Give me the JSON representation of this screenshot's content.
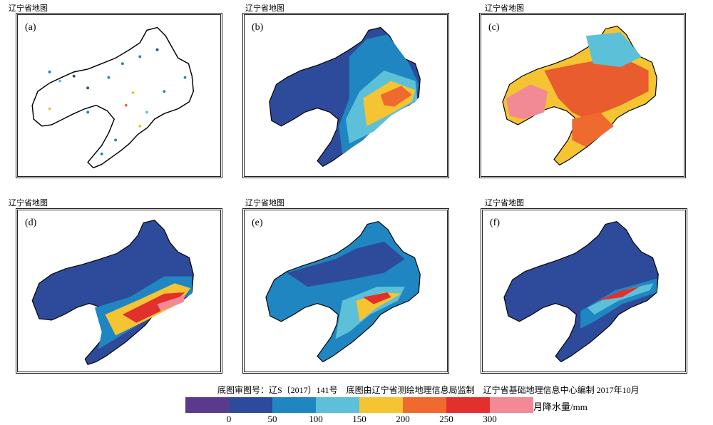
{
  "panels": [
    {
      "id": "a",
      "header": "辽宁省地图",
      "label": "(a)"
    },
    {
      "id": "b",
      "header": "辽宁省地图",
      "label": "(b)"
    },
    {
      "id": "c",
      "header": "辽宁省地图",
      "label": "(c)"
    },
    {
      "id": "d",
      "header": "辽宁省地图",
      "label": "(d)"
    },
    {
      "id": "e",
      "header": "辽宁省地图",
      "label": "(e)"
    },
    {
      "id": "f",
      "header": "辽宁省地图",
      "label": "(f)"
    }
  ],
  "credits": "底图审图号：辽S〔2017〕141号　底图由辽宁省测绘地理信息局监制　辽宁省基础地理信息中心编制 2017年10月",
  "legend": {
    "unit": "月降水量/mm",
    "ticks": [
      "0",
      "50",
      "100",
      "150",
      "200",
      "250",
      "300"
    ],
    "colors": [
      "#5b3a8c",
      "#2e4a9a",
      "#1f86c2",
      "#5cc0d8",
      "#f5c432",
      "#ee6a2e",
      "#e2302c",
      "#f28a95"
    ]
  }
}
